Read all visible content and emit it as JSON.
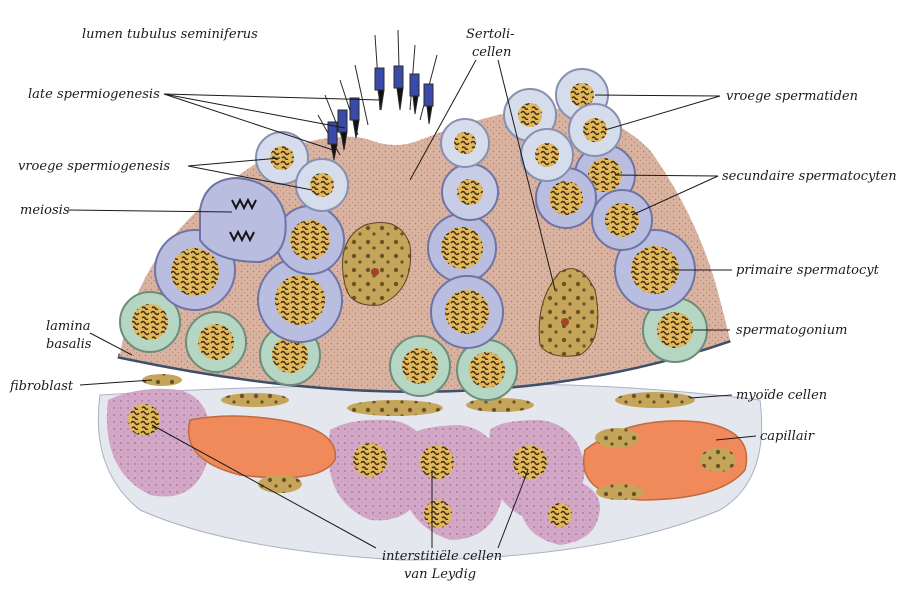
{
  "labels": {
    "lumen": "lumen tubulus seminiferus",
    "late_spermiogenesis": "late spermiogenesis",
    "vroege_spermiogenesis": "vroege spermiogenesis",
    "meiosis": "meiosis",
    "lamina_1": "lamina",
    "lamina_2": "basalis",
    "fibroblast": "fibroblast",
    "sertoli_1": "Sertoli-",
    "sertoli_2": "cellen",
    "vroege_spermatiden": "vroege spermatiden",
    "secundaire_spermatocyten": "secundaire spermatocyten",
    "primaire_spermatocyt": "primaire spermatocyt",
    "spermatogonium": "spermatogonium",
    "myoide_cellen": "myoïde cellen",
    "capillair": "capillair",
    "leydig_1": "interstitiële cellen",
    "leydig_2": "van Leydig"
  },
  "colors": {
    "sertoli_cytoplasm": "#d9b3a0",
    "spermatocyte_cytoplasm": "#b9bde0",
    "spermatid_cytoplasm": "#d5dcec",
    "spermatogonium_cytoplasm": "#b6d6c4",
    "nucleus": "#e3b85a",
    "chromatin": "#3a2a14",
    "capillary": "#f08a5a",
    "leydig": "#d2a8c6",
    "basal_lamina": "#3d4f6d",
    "sperm_head": "#3a4aa8"
  }
}
